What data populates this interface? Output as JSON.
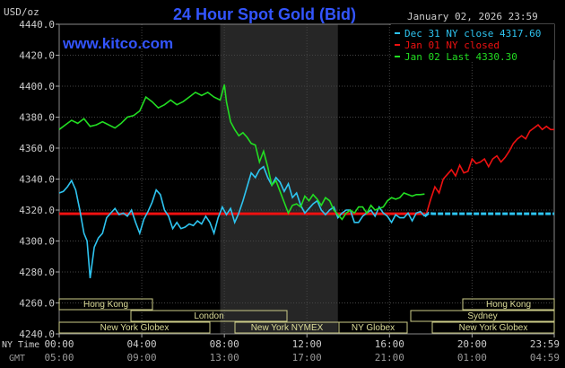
{
  "chart_data": {
    "type": "line",
    "title": "24 Hour Spot Gold (Bid)",
    "source": "www.kitco.com",
    "unit_label": "USD/oz",
    "timestamp": "January 02, 2026 23:59",
    "ylim": [
      4240,
      4440
    ],
    "y_ticks": [
      "4440.0",
      "4420.0",
      "4400.0",
      "4380.0",
      "4360.0",
      "4340.0",
      "4320.0",
      "4300.0",
      "4280.0",
      "4260.0",
      "4240.0"
    ],
    "x_axis_label_ny": "NY Time",
    "x_axis_label_gmt": "GMT",
    "x_ticks_ny": [
      "00:00",
      "04:00",
      "08:00",
      "12:00",
      "16:00",
      "20:00",
      "23:59"
    ],
    "x_ticks_gmt": [
      "05:00",
      "09:00",
      "13:00",
      "17:00",
      "21:00",
      "01:00",
      "04:59"
    ],
    "legend": [
      {
        "label": "Dec 31 NY close 4317.60",
        "color": "#2ec4f0"
      },
      {
        "label": "Jan 01 NY closed",
        "color": "#ee1111"
      },
      {
        "label": "Jan 02 Last 4330.30",
        "color": "#22dd22"
      }
    ],
    "reference_line": {
      "value": 4317.6,
      "color": "#ee1111"
    },
    "series": [
      {
        "color": "#2ec4f0",
        "x": [
          0,
          0.2,
          0.4,
          0.6,
          0.8,
          1.0,
          1.2,
          1.35,
          1.5,
          1.7,
          1.9,
          2.1,
          2.3,
          2.5,
          2.7,
          2.9,
          3.1,
          3.3,
          3.5,
          3.7,
          3.9,
          4.1,
          4.3,
          4.5,
          4.7,
          4.9,
          5.1,
          5.3,
          5.5,
          5.7,
          5.9,
          6.1,
          6.3,
          6.5,
          6.7,
          6.9,
          7.1,
          7.3,
          7.5,
          7.7,
          7.9,
          8.1,
          8.3,
          8.5,
          8.7,
          8.9,
          9.1,
          9.3,
          9.5,
          9.7,
          9.9,
          10.1,
          10.3,
          10.5,
          10.7,
          10.9,
          11.1,
          11.3,
          11.5,
          11.7,
          11.9,
          12.1,
          12.3,
          12.5,
          12.7,
          12.9,
          13.1,
          13.3,
          13.5,
          13.7,
          13.9,
          14.1,
          14.3,
          14.5,
          14.7,
          14.9,
          15.1,
          15.3,
          15.5,
          15.7,
          15.9,
          16.1,
          16.3,
          16.5,
          16.7,
          16.9,
          17.1,
          17.3,
          17.5,
          17.7,
          17.9,
          18.1,
          18.3,
          18.5,
          18.7,
          18.9,
          19.1,
          19.3,
          19.5,
          19.7,
          19.9,
          20.1,
          20.3,
          20.5,
          20.7,
          20.9,
          21.1,
          21.3,
          21.5,
          21.7,
          21.9,
          22.1,
          22.3,
          22.5,
          22.7,
          22.9,
          23.1,
          23.3,
          23.5,
          23.7,
          23.98
        ],
        "y": [
          4331,
          4332,
          4335,
          4339,
          4333,
          4320,
          4305,
          4300,
          4276,
          4296,
          4302,
          4305,
          4315,
          4318,
          4321,
          4317,
          4318,
          4316,
          4320,
          4312,
          4305,
          4314,
          4319,
          4325,
          4333,
          4330,
          4320,
          4316,
          4308,
          4312,
          4308,
          4309,
          4311,
          4310,
          4313,
          4311,
          4316,
          4312,
          4305,
          4315,
          4322,
          4317,
          4321,
          4312,
          4318,
          4326,
          4335,
          4344,
          4341,
          4346,
          4348,
          4341,
          4336,
          4341,
          4338,
          4332,
          4337,
          4328,
          4331,
          4323,
          4318,
          4321,
          4324,
          4326,
          4320,
          4317,
          4320,
          4322,
          4315,
          4318,
          4320,
          4320,
          4312,
          4312,
          4316,
          4318,
          4320,
          4316,
          4322,
          4318,
          4316,
          4312,
          4317,
          4315,
          4315,
          4318,
          4313,
          4318,
          4319,
          4316,
          4318,
          4317.6,
          4317.6,
          4317.6,
          4317.6,
          4317.6,
          4317.6,
          4317.6,
          4317.6,
          4317.6,
          4317.6,
          4317.6,
          4317.6,
          4317.6,
          4317.6,
          4317.6,
          4317.6,
          4317.6,
          4317.6,
          4317.6,
          4317.6,
          4317.6,
          4317.6,
          4317.6,
          4317.6,
          4317.6,
          4317.6,
          4317.6,
          4317.6,
          4317.6,
          4317.6
        ]
      },
      {
        "color": "#22dd22",
        "x": [
          0,
          0.3,
          0.6,
          0.9,
          1.2,
          1.5,
          1.8,
          2.1,
          2.4,
          2.7,
          3.0,
          3.3,
          3.6,
          3.9,
          4.2,
          4.5,
          4.8,
          5.1,
          5.4,
          5.7,
          6.0,
          6.3,
          6.6,
          6.9,
          7.2,
          7.5,
          7.8,
          8.0,
          8.1,
          8.3,
          8.5,
          8.7,
          8.9,
          9.1,
          9.3,
          9.5,
          9.7,
          9.9,
          10.1,
          10.3,
          10.5,
          10.7,
          10.9,
          11.1,
          11.3,
          11.5,
          11.7,
          11.9,
          12.1,
          12.3,
          12.5,
          12.7,
          12.9,
          13.1,
          13.3,
          13.5,
          13.7,
          13.9,
          14.1,
          14.3,
          14.5,
          14.7,
          14.9,
          15.1,
          15.3,
          15.5,
          15.7,
          15.9,
          16.1,
          16.3,
          16.5,
          16.7,
          16.9,
          17.1,
          17.3,
          17.5,
          17.7
        ],
        "y": [
          4372,
          4375,
          4378,
          4376,
          4379,
          4374,
          4375,
          4377,
          4375,
          4373,
          4376,
          4380,
          4381,
          4384,
          4393,
          4390,
          4386,
          4388,
          4391,
          4388,
          4390,
          4393,
          4396,
          4394,
          4396,
          4393,
          4391,
          4401,
          4390,
          4377,
          4372,
          4368,
          4370,
          4367,
          4363,
          4362,
          4351,
          4358,
          4348,
          4336,
          4339,
          4332,
          4325,
          4318,
          4323,
          4324,
          4322,
          4329,
          4326,
          4330,
          4327,
          4323,
          4328,
          4326,
          4320,
          4317,
          4314,
          4318,
          4320,
          4318,
          4322,
          4322,
          4318,
          4323,
          4320,
          4321,
          4322,
          4326,
          4328,
          4327,
          4328,
          4331,
          4330,
          4329,
          4330,
          4330,
          4330.3
        ]
      },
      {
        "color": "#ee1111",
        "x": [
          17.8,
          18.0,
          18.2,
          18.4,
          18.6,
          18.8,
          19.0,
          19.2,
          19.4,
          19.6,
          19.8,
          20.0,
          20.2,
          20.4,
          20.6,
          20.8,
          21.0,
          21.2,
          21.4,
          21.6,
          21.8,
          22.0,
          22.2,
          22.4,
          22.6,
          22.8,
          23.0,
          23.2,
          23.4,
          23.6,
          23.8,
          23.98
        ],
        "y": [
          4318,
          4327,
          4335,
          4331,
          4340,
          4343,
          4346,
          4342,
          4349,
          4344,
          4345,
          4353,
          4350,
          4351,
          4353,
          4348,
          4353,
          4355,
          4351,
          4354,
          4358,
          4363,
          4366,
          4368,
          4366,
          4371,
          4373,
          4375,
          4372,
          4374,
          4372,
          4372
        ]
      }
    ],
    "shaded_band": {
      "x_start": 7.8,
      "x_end": 13.5
    },
    "sessions_row1_left": "Hong Kong",
    "sessions_row1_right": "Hong Kong",
    "sessions_row2_left": "London",
    "sessions_row2_right": "Sydney",
    "sessions_row3": [
      "New York Globex",
      "New York NYMEX",
      "NY Globex",
      "New York Globex"
    ]
  },
  "colors": {
    "background": "#000000",
    "title": "#3355ff",
    "axis_text": "#cccccc",
    "grid": "#444444",
    "band": "#262626",
    "session_border": "#cccc88",
    "session_text": "#dddd99"
  }
}
